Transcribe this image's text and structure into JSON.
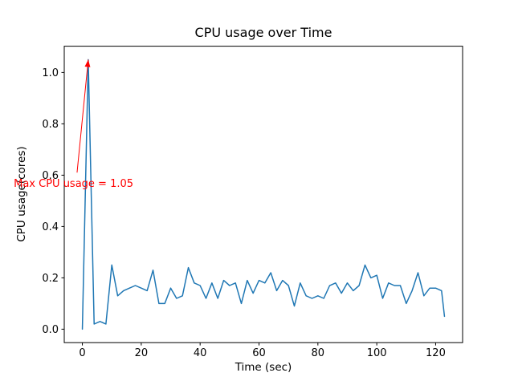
{
  "chart_data": {
    "type": "line",
    "title": "CPU usage over Time",
    "xlabel": "Time (sec)",
    "ylabel": "CPU usage(cores)",
    "line_color": "#1f77b4",
    "grid": false,
    "legend": null,
    "xticks": [
      0,
      20,
      40,
      60,
      80,
      100,
      120
    ],
    "yticks": [
      0.0,
      0.2,
      0.4,
      0.6,
      0.8,
      1.0
    ],
    "xlim": [
      -6.15,
      129.15
    ],
    "ylim": [
      -0.0525,
      1.1025
    ],
    "x": [
      0,
      2,
      4,
      6,
      8,
      10,
      12,
      14,
      16,
      18,
      20,
      22,
      24,
      26,
      28,
      30,
      32,
      34,
      36,
      38,
      40,
      42,
      44,
      46,
      48,
      50,
      52,
      54,
      56,
      58,
      60,
      62,
      64,
      66,
      68,
      70,
      72,
      74,
      76,
      78,
      80,
      82,
      84,
      86,
      88,
      90,
      92,
      94,
      96,
      98,
      100,
      102,
      104,
      106,
      108,
      110,
      112,
      114,
      116,
      118,
      120,
      122,
      123
    ],
    "y": [
      0.0,
      1.05,
      0.02,
      0.03,
      0.02,
      0.25,
      0.13,
      0.15,
      0.16,
      0.17,
      0.16,
      0.15,
      0.23,
      0.1,
      0.1,
      0.16,
      0.12,
      0.13,
      0.24,
      0.18,
      0.17,
      0.12,
      0.18,
      0.12,
      0.19,
      0.17,
      0.18,
      0.1,
      0.19,
      0.14,
      0.19,
      0.18,
      0.22,
      0.15,
      0.19,
      0.17,
      0.09,
      0.18,
      0.13,
      0.12,
      0.13,
      0.12,
      0.17,
      0.18,
      0.14,
      0.18,
      0.15,
      0.17,
      0.25,
      0.2,
      0.21,
      0.12,
      0.18,
      0.17,
      0.17,
      0.1,
      0.15,
      0.22,
      0.13,
      0.16,
      0.16,
      0.15,
      0.05
    ],
    "annotation": {
      "text": "Max CPU usage = 1.05",
      "color": "#ff0000",
      "xy": [
        2,
        1.05
      ],
      "arrow_start": [
        -1.8,
        0.61
      ],
      "text_pos": [
        -23.3,
        0.554
      ]
    }
  }
}
